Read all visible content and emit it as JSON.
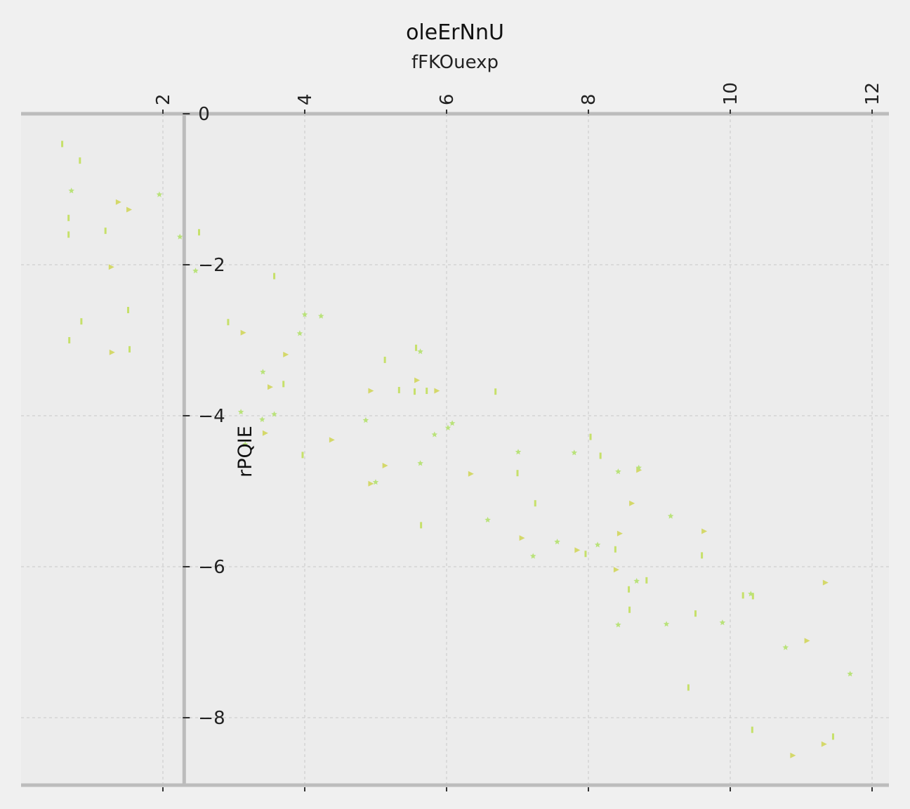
{
  "chart_data": {
    "type": "scatter",
    "title": "oleErNnU",
    "subtitle": "fFKOuexp",
    "xlabel": "",
    "ylabel": "rPQIE",
    "xlim": [
      -0.0,
      12.3
    ],
    "ylim": [
      -8.9,
      0.0
    ],
    "x_ticks": [
      2,
      4,
      6,
      8,
      10,
      12
    ],
    "x_tick_labels": [
      "2",
      "4",
      "6",
      "8",
      "10",
      "12"
    ],
    "y_ticks": [
      0,
      -2,
      -4,
      -6,
      -8
    ],
    "y_tick_labels": [
      "0",
      "−2",
      "−4",
      "−6",
      "−8"
    ],
    "x_axis_position": "top",
    "y_axis_crosses_x": 2.3,
    "grid": true,
    "colors": {
      "background": "#f0f0f0",
      "plot_bg": "#ececec",
      "spine": "#bcbcbc",
      "grid": "#c8c8c8"
    },
    "series": [
      {
        "marker": "tick",
        "color": "#c6e06a",
        "points": [
          [
            0.58,
            -0.4
          ],
          [
            0.83,
            -0.62
          ],
          [
            0.67,
            -1.38
          ],
          [
            0.67,
            -1.6
          ],
          [
            1.19,
            -1.55
          ],
          [
            0.85,
            -2.75
          ],
          [
            0.68,
            -3.0
          ],
          [
            1.51,
            -2.6
          ],
          [
            1.53,
            -3.12
          ],
          [
            2.51,
            -1.57
          ],
          [
            3.57,
            -2.15
          ],
          [
            2.92,
            -2.76
          ],
          [
            3.7,
            -3.58
          ],
          [
            3.97,
            -4.52
          ],
          [
            5.13,
            -3.26
          ],
          [
            5.33,
            -3.66
          ],
          [
            5.57,
            -3.1
          ],
          [
            5.55,
            -3.68
          ],
          [
            5.64,
            -5.45
          ],
          [
            5.72,
            -3.67
          ],
          [
            6.69,
            -3.68
          ],
          [
            7.0,
            -4.76
          ],
          [
            7.25,
            -5.16
          ],
          [
            7.96,
            -5.83
          ],
          [
            8.03,
            -4.28
          ],
          [
            8.17,
            -4.53
          ],
          [
            8.38,
            -5.77
          ],
          [
            8.57,
            -6.3
          ],
          [
            8.58,
            -6.57
          ],
          [
            8.82,
            -6.18
          ],
          [
            9.6,
            -5.85
          ],
          [
            9.51,
            -6.62
          ],
          [
            9.41,
            -7.6
          ],
          [
            10.18,
            -6.38
          ],
          [
            10.32,
            -6.39
          ],
          [
            10.31,
            -8.16
          ],
          [
            11.45,
            -8.25
          ]
        ]
      },
      {
        "marker": "triangle",
        "color": "#d4d86a",
        "points": [
          [
            1.37,
            -1.17
          ],
          [
            1.52,
            -1.27
          ],
          [
            1.27,
            -2.03
          ],
          [
            1.28,
            -3.16
          ],
          [
            3.13,
            -2.9
          ],
          [
            3.51,
            -3.62
          ],
          [
            3.44,
            -4.23
          ],
          [
            3.73,
            -3.19
          ],
          [
            4.38,
            -4.32
          ],
          [
            4.93,
            -3.67
          ],
          [
            5.13,
            -4.66
          ],
          [
            4.93,
            -4.9
          ],
          [
            5.58,
            -3.53
          ],
          [
            5.86,
            -3.67
          ],
          [
            6.34,
            -4.77
          ],
          [
            7.06,
            -5.62
          ],
          [
            7.84,
            -5.78
          ],
          [
            8.39,
            -6.04
          ],
          [
            8.44,
            -5.56
          ],
          [
            8.61,
            -5.16
          ],
          [
            8.71,
            -4.72
          ],
          [
            9.63,
            -5.53
          ],
          [
            11.08,
            -6.98
          ],
          [
            11.34,
            -6.21
          ],
          [
            11.32,
            -8.35
          ],
          [
            10.88,
            -8.5
          ]
        ]
      },
      {
        "marker": "star",
        "color": "#b9e27a",
        "points": [
          [
            0.71,
            -1.02
          ],
          [
            1.95,
            -1.07
          ],
          [
            2.24,
            -1.63
          ],
          [
            2.46,
            -2.08
          ],
          [
            3.16,
            -4.38
          ],
          [
            3.41,
            -3.42
          ],
          [
            3.4,
            -4.05
          ],
          [
            3.57,
            -3.98
          ],
          [
            3.93,
            -2.91
          ],
          [
            4.0,
            -2.66
          ],
          [
            4.23,
            -2.68
          ],
          [
            4.86,
            -4.06
          ],
          [
            5.63,
            -3.15
          ],
          [
            5.63,
            -4.63
          ],
          [
            5.83,
            -4.25
          ],
          [
            6.02,
            -4.16
          ],
          [
            6.08,
            -4.1
          ],
          [
            6.58,
            -5.38
          ],
          [
            7.01,
            -4.48
          ],
          [
            7.22,
            -5.86
          ],
          [
            7.56,
            -5.67
          ],
          [
            7.8,
            -4.49
          ],
          [
            8.13,
            -5.71
          ],
          [
            8.42,
            -4.74
          ],
          [
            8.42,
            -6.77
          ],
          [
            8.68,
            -6.19
          ],
          [
            8.71,
            -4.69
          ],
          [
            9.1,
            -6.76
          ],
          [
            9.16,
            -5.33
          ],
          [
            9.89,
            -6.74
          ],
          [
            10.29,
            -6.36
          ],
          [
            10.78,
            -7.07
          ],
          [
            11.69,
            -7.42
          ],
          [
            5.0,
            -4.88
          ],
          [
            3.1,
            -3.95
          ]
        ]
      }
    ]
  }
}
